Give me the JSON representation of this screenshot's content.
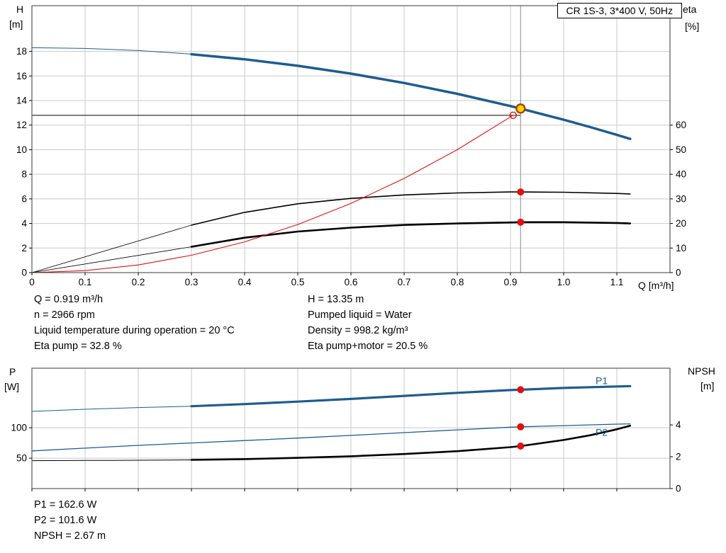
{
  "axis_labels": {
    "h": "H",
    "h_unit": "[m]",
    "eta": "eta",
    "eta_unit": "[%]",
    "q": "Q [m³/h]",
    "p": "P",
    "p_unit": "[W]",
    "npsh": "NPSH",
    "npsh_unit": "[m]"
  },
  "top_info_left": [
    "Q = 0.919 m³/h",
    "n = 2966 rpm",
    "Liquid temperature during operation = 20 °C",
    "Eta pump = 32.8 %"
  ],
  "top_info_right": [
    "H = 13.35 m",
    "Pumped liquid = Water",
    "Density = 998.2 kg/m³",
    "Eta pump+motor = 20.5 %"
  ],
  "bottom_info": [
    "P1 = 162.6 W",
    "P2 = 101.6 W",
    "NPSH = 2.67 m"
  ],
  "colors": {
    "blue": "#1e5c90",
    "black": "#000000",
    "red": "#e01010",
    "yellow": "#ffd700",
    "yellow_ring": "#a84300",
    "grid": "#c9c9c9",
    "frame": "#3a3a3a",
    "duty_line": "#8a8a8a"
  },
  "chart_data": [
    {
      "name": "qh-eta-chart",
      "type": "line",
      "title": "CR 1S-3, 3*400 V, 50Hz",
      "xlabel": "Q [m³/h]",
      "xlim": [
        0,
        1.2
      ],
      "x_ticks": [
        0,
        0.1,
        0.2,
        0.3,
        0.4,
        0.5,
        0.6,
        0.7,
        0.8,
        0.9,
        1.0,
        1.1
      ],
      "show_x_tick_labels": true,
      "left_axis": {
        "label": "H [m]",
        "lim": [
          0,
          21.72
        ],
        "ticks": [
          0,
          2,
          4,
          6,
          8,
          10,
          12,
          14,
          16,
          18
        ]
      },
      "right_axis": {
        "label": "eta [%]",
        "lim": [
          0,
          108.6
        ],
        "ticks": [
          0,
          10,
          20,
          30,
          40,
          50,
          60
        ]
      },
      "duty_lines": {
        "q": 0.919,
        "h": 12.8
      },
      "series": [
        {
          "name": "qh-curve-low-flow",
          "axis": "left",
          "color": "#1e5c90",
          "width": 1,
          "x": [
            0,
            0.1,
            0.2,
            0.3
          ],
          "y": [
            18.3,
            18.24,
            18.07,
            17.78
          ]
        },
        {
          "name": "qh-curve",
          "axis": "left",
          "color": "#1e5c90",
          "width": 3.5,
          "x": [
            0.3,
            0.4,
            0.5,
            0.6,
            0.7,
            0.8,
            0.9,
            0.919,
            1.0,
            1.05,
            1.1,
            1.125
          ],
          "y": [
            17.77,
            17.36,
            16.83,
            16.19,
            15.43,
            14.55,
            13.55,
            13.35,
            12.44,
            11.84,
            11.21,
            10.88
          ]
        },
        {
          "name": "eta-pump-low-flow",
          "axis": "right",
          "color": "#000000",
          "width": 0.8,
          "x": [
            0,
            0.3
          ],
          "y": [
            0,
            19.3
          ]
        },
        {
          "name": "eta-pump-curve",
          "axis": "right",
          "color": "#000000",
          "width": 1.6,
          "x": [
            0.3,
            0.4,
            0.5,
            0.6,
            0.7,
            0.8,
            0.9,
            0.919,
            1.0,
            1.1,
            1.125
          ],
          "y": [
            19.3,
            24.5,
            28.0,
            30.2,
            31.6,
            32.4,
            32.8,
            32.8,
            32.7,
            32.2,
            32.0
          ]
        },
        {
          "name": "eta-pump-motor-low-flow",
          "axis": "right",
          "color": "#000000",
          "width": 0.8,
          "x": [
            0,
            0.3
          ],
          "y": [
            0,
            10.5
          ]
        },
        {
          "name": "eta-pump-motor-curve",
          "axis": "right",
          "color": "#000000",
          "width": 2.6,
          "x": [
            0.3,
            0.4,
            0.5,
            0.6,
            0.7,
            0.8,
            0.9,
            0.919,
            1.0,
            1.1,
            1.125
          ],
          "y": [
            10.5,
            14.2,
            16.7,
            18.3,
            19.4,
            20.0,
            20.4,
            20.5,
            20.5,
            20.2,
            20.0
          ]
        },
        {
          "name": "system-curve",
          "axis": "left",
          "color": "#e01010",
          "width": 1.1,
          "x": [
            0,
            0.1,
            0.2,
            0.3,
            0.4,
            0.5,
            0.6,
            0.7,
            0.8,
            0.905
          ],
          "y": [
            0,
            0.16,
            0.62,
            1.41,
            2.5,
            3.91,
            5.63,
            7.66,
            10.0,
            12.8
          ]
        }
      ],
      "markers": [
        {
          "name": "system-curve-end-marker",
          "axis": "left",
          "x": 0.905,
          "y": 12.8,
          "style": "open-red"
        },
        {
          "name": "duty-point-marker",
          "axis": "left",
          "x": 0.919,
          "y": 13.35,
          "style": "yellow"
        },
        {
          "name": "eta-pump-duty-marker",
          "axis": "right",
          "x": 0.919,
          "y": 32.8,
          "style": "red"
        },
        {
          "name": "eta-pump-motor-duty-marker",
          "axis": "right",
          "x": 0.919,
          "y": 20.5,
          "style": "red"
        }
      ],
      "labels": []
    },
    {
      "name": "power-npsh-chart",
      "type": "line",
      "title": "",
      "xlim": [
        0,
        1.2
      ],
      "x_ticks": [
        0,
        0.1,
        0.2,
        0.3,
        0.4,
        0.5,
        0.6,
        0.7,
        0.8,
        0.9,
        1.0,
        1.1
      ],
      "show_x_tick_labels": false,
      "left_axis": {
        "label": "P [W]",
        "lim": [
          0,
          198
        ],
        "ticks": [
          50,
          100
        ]
      },
      "right_axis": {
        "label": "NPSH [m]",
        "lim": [
          0,
          7.56
        ],
        "ticks": [
          0,
          2,
          4
        ]
      },
      "series": [
        {
          "name": "p1-curve-low-flow",
          "axis": "left",
          "color": "#1e5c90",
          "width": 1,
          "x": [
            0,
            0.1,
            0.2,
            0.3
          ],
          "y": [
            127,
            130.5,
            133.2,
            135.5
          ]
        },
        {
          "name": "p1-curve",
          "axis": "left",
          "color": "#1e5c90",
          "width": 3.2,
          "x": [
            0.3,
            0.4,
            0.5,
            0.6,
            0.7,
            0.8,
            0.9,
            0.919,
            1.0,
            1.1,
            1.125
          ],
          "y": [
            135.5,
            139,
            143,
            147.5,
            152.5,
            157.5,
            162,
            162.6,
            165.5,
            168,
            168.5
          ]
        },
        {
          "name": "p2-curve",
          "axis": "left",
          "color": "#1e5c90",
          "width": 1.3,
          "x": [
            0,
            0.1,
            0.2,
            0.3,
            0.4,
            0.5,
            0.6,
            0.7,
            0.8,
            0.9,
            0.919,
            1.0,
            1.1,
            1.125
          ],
          "y": [
            62,
            66.5,
            71,
            75,
            79,
            83,
            87.5,
            92,
            96.5,
            101,
            101.6,
            103.5,
            106,
            106.5
          ]
        },
        {
          "name": "npsh-curve-low-flow",
          "axis": "right",
          "color": "#000000",
          "width": 1,
          "x": [
            0,
            0.15,
            0.3
          ],
          "y": [
            1.75,
            1.77,
            1.8
          ]
        },
        {
          "name": "npsh-curve",
          "axis": "right",
          "color": "#000000",
          "width": 2.6,
          "x": [
            0.3,
            0.4,
            0.5,
            0.6,
            0.7,
            0.8,
            0.9,
            0.919,
            1.0,
            1.05,
            1.1,
            1.125
          ],
          "y": [
            1.8,
            1.85,
            1.93,
            2.03,
            2.17,
            2.35,
            2.6,
            2.67,
            3.05,
            3.35,
            3.72,
            3.95
          ]
        }
      ],
      "markers": [
        {
          "name": "p1-duty-marker",
          "axis": "left",
          "x": 0.919,
          "y": 162.6,
          "style": "red"
        },
        {
          "name": "p2-duty-marker",
          "axis": "left",
          "x": 0.919,
          "y": 101.6,
          "style": "red"
        },
        {
          "name": "npsh-duty-marker",
          "axis": "right",
          "x": 0.919,
          "y": 2.67,
          "style": "red"
        }
      ],
      "labels": [
        {
          "text": "P1",
          "axis": "left",
          "x": 1.06,
          "y": 172,
          "color": "#1e5c90"
        },
        {
          "text": "P2",
          "axis": "left",
          "x": 1.06,
          "y": 87,
          "color": "#1e5c90"
        }
      ]
    }
  ]
}
